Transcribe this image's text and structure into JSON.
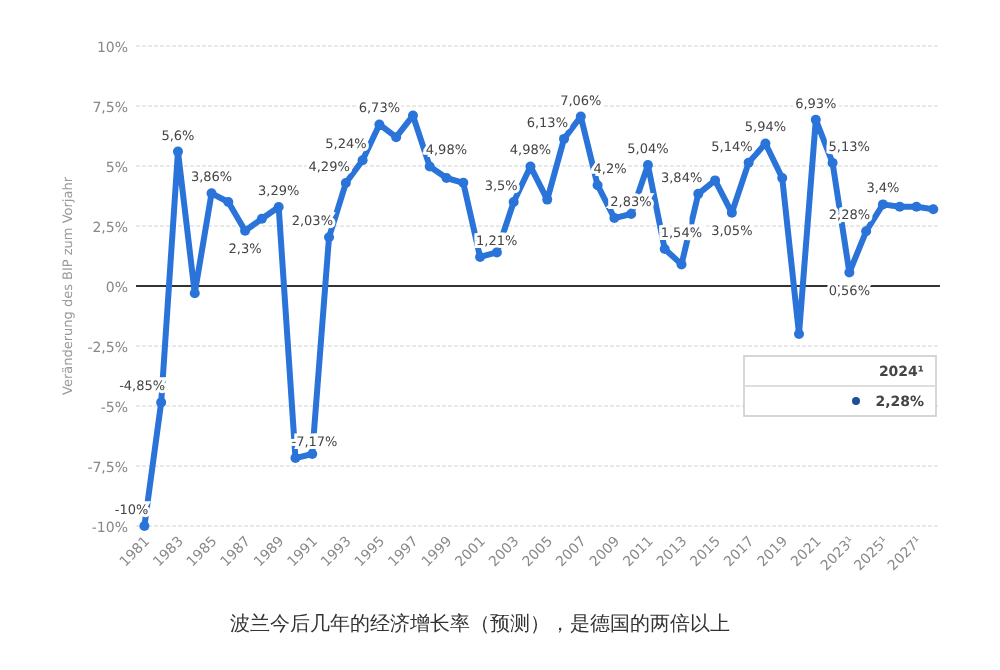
{
  "chart_data": {
    "type": "line",
    "ylabel": "Veränderung des BIP zum Vorjahr",
    "x": [
      1981,
      1982,
      1983,
      1984,
      1985,
      1986,
      1987,
      1988,
      1989,
      1990,
      1991,
      1992,
      1993,
      1994,
      1995,
      1996,
      1997,
      1998,
      1999,
      2000,
      2001,
      2002,
      2003,
      2004,
      2005,
      2006,
      2007,
      2008,
      2009,
      2010,
      2011,
      2012,
      2013,
      2014,
      2015,
      2016,
      2017,
      2018,
      2019,
      2020,
      2021,
      2022,
      2023,
      2024,
      2025,
      2026,
      2027,
      2028
    ],
    "series": [
      {
        "color": "#2a73d9",
        "values": [
          -10,
          -4.85,
          5.6,
          -0.3,
          3.86,
          3.5,
          2.3,
          2.8,
          3.29,
          -7.17,
          -7.0,
          2.03,
          4.29,
          5.24,
          6.73,
          6.2,
          7.1,
          4.98,
          4.5,
          4.3,
          1.21,
          1.4,
          3.5,
          4.98,
          3.6,
          6.13,
          7.06,
          4.2,
          2.83,
          3.0,
          5.04,
          1.54,
          0.9,
          3.84,
          4.4,
          3.05,
          5.14,
          5.94,
          4.5,
          -2.0,
          6.93,
          5.13,
          0.56,
          2.28,
          3.4,
          3.3,
          3.3,
          3.2
        ],
        "value_labels": [
          "-10%",
          "-4,85%",
          "5,6%",
          null,
          "3,86%",
          null,
          "2,3%",
          null,
          "3,29%",
          "-7,17%",
          null,
          "2,03%",
          "4,29%",
          "5,24%",
          "6,73%",
          null,
          null,
          "4,98%",
          null,
          null,
          "1,21%",
          null,
          "3,5%",
          "4,98%",
          null,
          "6,13%",
          "7,06%",
          "4,2%",
          "2,83%",
          null,
          "5,04%",
          "1,54%",
          null,
          "3,84%",
          null,
          "3,05%",
          "5,14%",
          "5,94%",
          null,
          null,
          "6,93%",
          "5,13%",
          "0,56%",
          "2,28%",
          "3,4%",
          null,
          null,
          null
        ]
      }
    ],
    "xlim": [
      1980.5,
      2028.4
    ],
    "ylim": [
      -10,
      10
    ],
    "xticks": [
      1981,
      1983,
      1985,
      1987,
      1989,
      1991,
      1993,
      1995,
      1997,
      1999,
      2001,
      2003,
      2005,
      2007,
      2009,
      2011,
      2013,
      2015,
      2017,
      2019,
      2021,
      {
        "value": 2023,
        "label": "2023¹"
      },
      {
        "value": 2025,
        "label": "2025¹"
      },
      {
        "value": 2027,
        "label": "2027¹"
      }
    ],
    "yticks": [
      {
        "value": -10,
        "label": "-10%"
      },
      {
        "value": -7.5,
        "label": "-7,5%"
      },
      {
        "value": -5,
        "label": "-5%"
      },
      {
        "value": -2.5,
        "label": "-2,5%"
      },
      {
        "value": 0,
        "label": "0%"
      },
      {
        "value": 2.5,
        "label": "2,5%"
      },
      {
        "value": 5,
        "label": "5%"
      },
      {
        "value": 7.5,
        "label": "7,5%"
      },
      {
        "value": 10,
        "label": "10%"
      }
    ],
    "grid": "y",
    "marker": "circle",
    "line_style": "solid",
    "annotations": [
      "2024¹",
      "2,28%",
      "波兰今后几年的经济增长率（预测），是德国的两倍以上"
    ]
  }
}
